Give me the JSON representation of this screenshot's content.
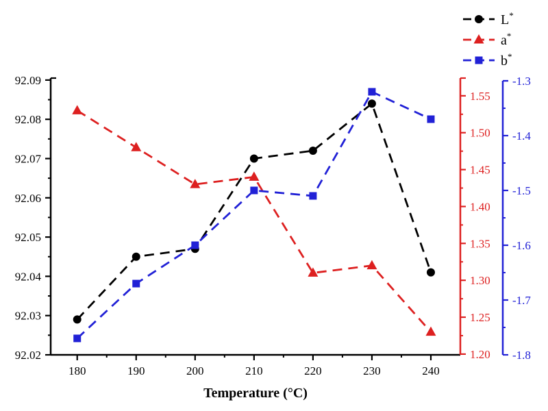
{
  "chart_data": {
    "type": "line",
    "title": "",
    "xlabel": "Temperature (°C)",
    "x": [
      180,
      190,
      200,
      210,
      220,
      230,
      240
    ],
    "series": [
      {
        "name": "L*",
        "axis": "left",
        "color": "#000000",
        "marker": "circle",
        "linestyle": "dashed",
        "values": [
          92.029,
          92.045,
          92.047,
          92.07,
          92.072,
          92.084,
          92.041
        ]
      },
      {
        "name": "a*",
        "axis": "right_a",
        "color": "#dd2020",
        "marker": "triangle",
        "linestyle": "dashed",
        "values": [
          1.53,
          1.48,
          1.43,
          1.44,
          1.31,
          1.32,
          1.23
        ]
      },
      {
        "name": "b*",
        "axis": "right_b",
        "color": "#2121d6",
        "marker": "square",
        "linestyle": "dashed",
        "values": [
          -1.77,
          -1.67,
          -1.6,
          -1.5,
          -1.51,
          -1.32,
          -1.37
        ]
      }
    ],
    "axes": {
      "x": {
        "min": 175.5,
        "max": 245,
        "major_ticks": [
          180,
          190,
          200,
          210,
          220,
          230,
          240
        ],
        "minor_step": 5,
        "decimals": 0,
        "color": "#000000"
      },
      "left": {
        "min": 92.02,
        "max": 92.0905,
        "major_ticks": [
          92.02,
          92.03,
          92.04,
          92.05,
          92.06,
          92.07,
          92.08,
          92.09
        ],
        "minor_step": 0.005,
        "decimals": 2,
        "color": "#000000"
      },
      "right_a": {
        "min": 1.199,
        "max": 1.574,
        "major_ticks": [
          1.2,
          1.25,
          1.3,
          1.35,
          1.4,
          1.45,
          1.5,
          1.55
        ],
        "minor_step": 0.025,
        "decimals": 2,
        "color": "#dd2020"
      },
      "right_b": {
        "min": -1.8,
        "max": -1.295,
        "major_ticks": [
          -1.8,
          -1.7,
          -1.6,
          -1.5,
          -1.4,
          -1.3
        ],
        "minor_step": 0.05,
        "decimals": 1,
        "color": "#2121d6"
      }
    },
    "legend": {
      "position": "top-right",
      "entries": [
        "L*",
        "a*",
        "b*"
      ]
    },
    "grid": false
  }
}
